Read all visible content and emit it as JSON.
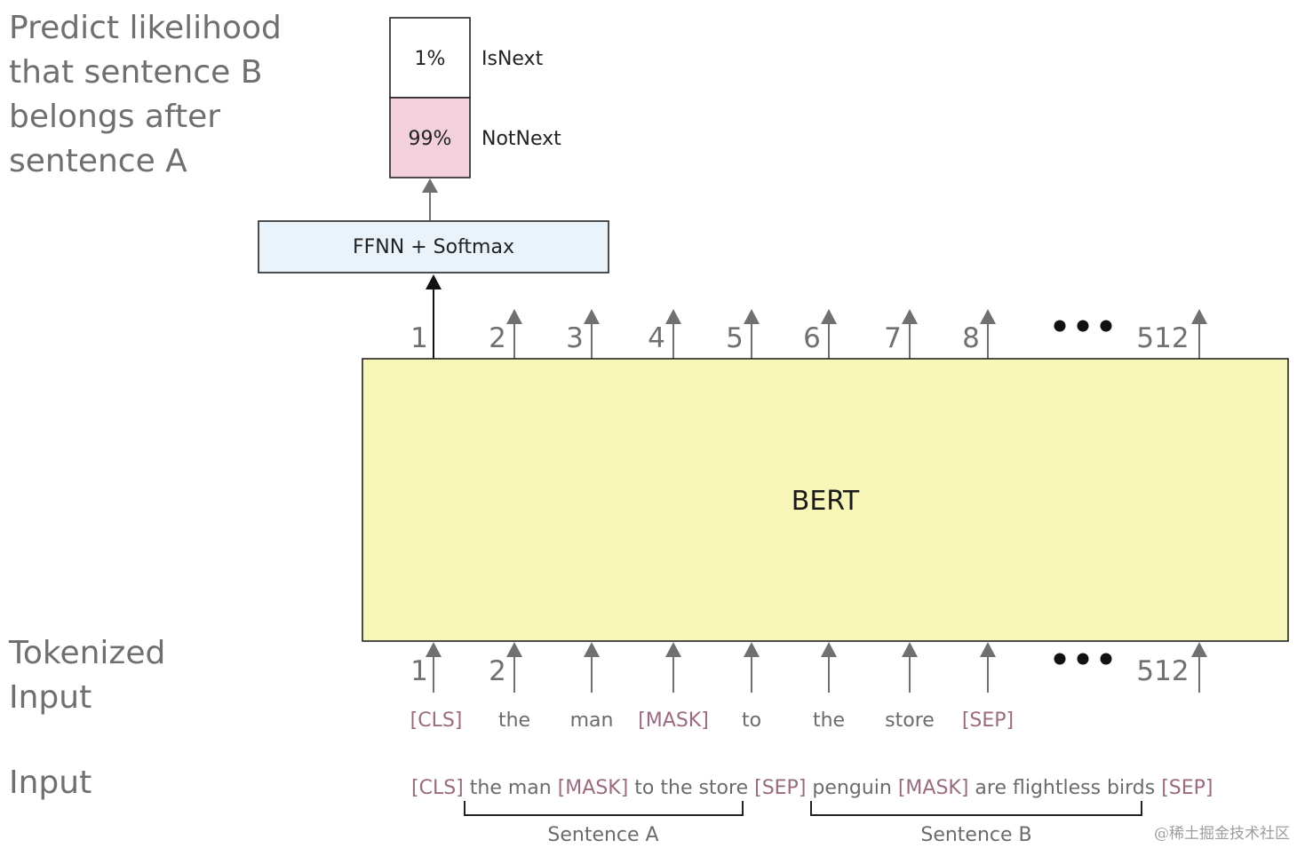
{
  "left_labels": {
    "predict": [
      "Predict likelihood",
      "that sentence B",
      "belongs after",
      "sentence A"
    ],
    "tokenized": [
      "Tokenized",
      "Input"
    ],
    "input": "Input"
  },
  "output": {
    "isnext_value": "1%",
    "isnext_label": "IsNext",
    "notnext_value": "99%",
    "notnext_label": "NotNext",
    "ffnn_label": "FFNN + Softmax"
  },
  "bert_label": "BERT",
  "top_positions": [
    "1",
    "2",
    "3",
    "4",
    "5",
    "6",
    "7",
    "8",
    "512"
  ],
  "bottom_positions": [
    "1",
    "2",
    "512"
  ],
  "tokens": [
    "[CLS]",
    "the",
    "man",
    "[MASK]",
    "to",
    "the",
    "store",
    "[SEP]"
  ],
  "input_sentence": [
    {
      "text": "[CLS]",
      "special": true
    },
    {
      "text": " the man ",
      "special": false
    },
    {
      "text": "[MASK]",
      "special": true
    },
    {
      "text": " to the store ",
      "special": false
    },
    {
      "text": "[SEP]",
      "special": true
    },
    {
      "text": " penguin ",
      "special": false
    },
    {
      "text": "[MASK]",
      "special": true
    },
    {
      "text": " are flightless birds ",
      "special": false
    },
    {
      "text": "[SEP]",
      "special": true
    }
  ],
  "sentence_a_label": "Sentence A",
  "sentence_b_label": "Sentence B",
  "watermark": "@稀土掘金技术社区",
  "colors": {
    "bert_fill": "#f7f5b8",
    "notnext_fill": "#f2d1dd",
    "ffnn_fill": "#eaf3fa",
    "arrow_gray": "#707070",
    "special_token": "#9a6a80"
  }
}
